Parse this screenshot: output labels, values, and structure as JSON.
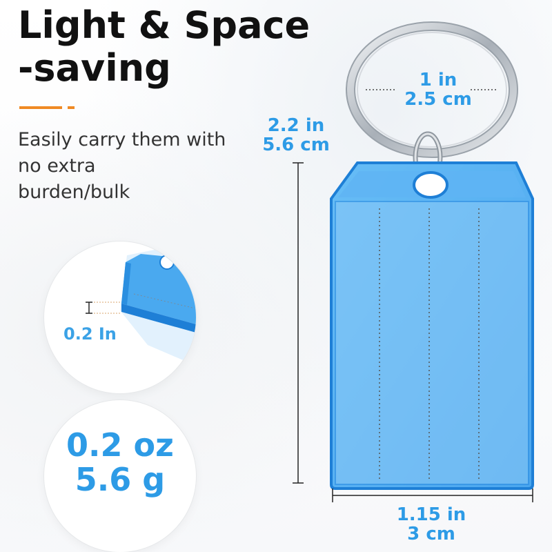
{
  "headline": {
    "line1": "Light & Space",
    "line2": "-saving"
  },
  "subtitle": {
    "line1": "Easily carry them with",
    "line2": "no extra",
    "line3": "burden/bulk"
  },
  "dimensions": {
    "ring_in": "1 in",
    "ring_cm": "2.5 cm",
    "height_in": "2.2 in",
    "height_cm": "5.6 cm",
    "width_in": "1.15 in",
    "width_cm": "3 cm",
    "thickness": "0.2 In"
  },
  "weight": {
    "oz": "0.2 oz",
    "g": "5.6 g"
  },
  "colors": {
    "accent": "#f08a24",
    "dimension_text": "#2d9be6",
    "tag_fill": "#58b2f3",
    "tag_edge": "#1e7fd6"
  }
}
